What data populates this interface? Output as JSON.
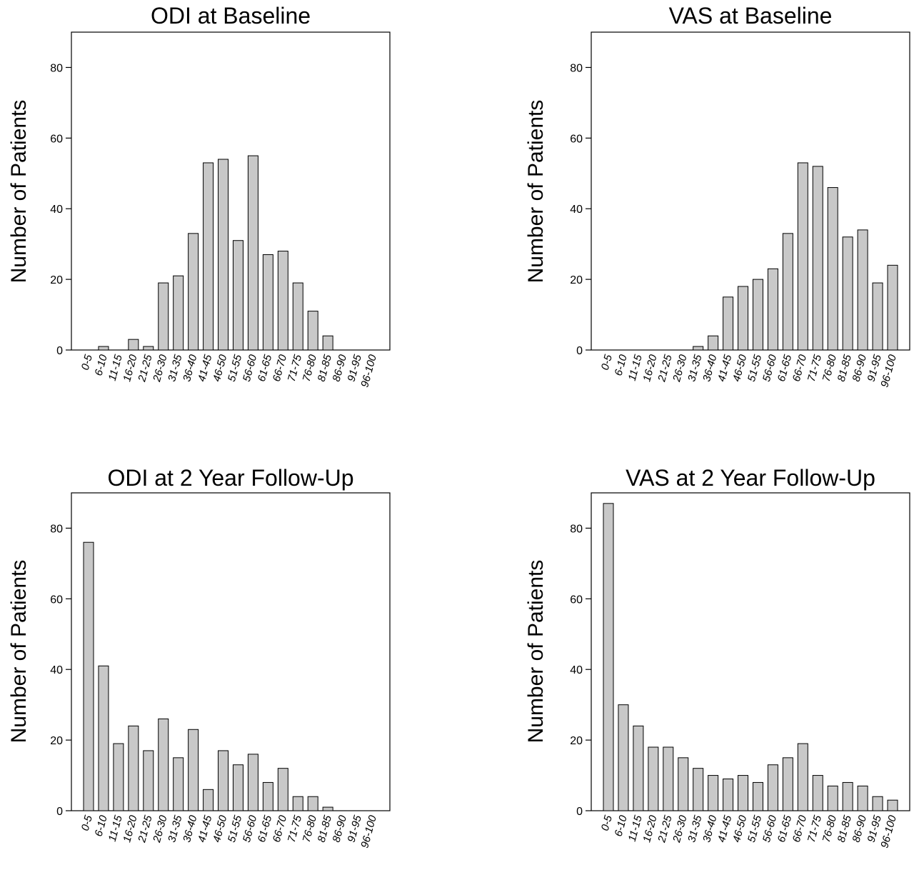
{
  "chart_data": [
    {
      "type": "bar",
      "title": "ODI at Baseline",
      "ylabel": "Number of Patients",
      "xlabel": "",
      "ylim": [
        0,
        90
      ],
      "yticks": [
        0,
        20,
        40,
        60,
        80
      ],
      "categories": [
        "0-5",
        "6-10",
        "11-15",
        "16-20",
        "21-25",
        "26-30",
        "31-35",
        "36-40",
        "41-45",
        "46-50",
        "51-55",
        "56-60",
        "61-65",
        "66-70",
        "71-75",
        "76-80",
        "81-85",
        "86-90",
        "91-95",
        "96-100"
      ],
      "values": [
        0,
        1,
        0,
        3,
        1,
        19,
        21,
        33,
        53,
        54,
        31,
        55,
        27,
        28,
        19,
        11,
        4,
        0,
        0,
        0
      ]
    },
    {
      "type": "bar",
      "title": "VAS at Baseline",
      "ylabel": "Number of Patients",
      "xlabel": "",
      "ylim": [
        0,
        90
      ],
      "yticks": [
        0,
        20,
        40,
        60,
        80
      ],
      "categories": [
        "0-5",
        "6-10",
        "11-15",
        "16-20",
        "21-25",
        "26-30",
        "31-35",
        "36-40",
        "41-45",
        "46-50",
        "51-55",
        "56-60",
        "61-65",
        "66-70",
        "71-75",
        "76-80",
        "81-85",
        "86-90",
        "91-95",
        "96-100"
      ],
      "values": [
        0,
        0,
        0,
        0,
        0,
        0,
        1,
        4,
        15,
        18,
        20,
        23,
        33,
        53,
        52,
        46,
        32,
        34,
        19,
        24
      ]
    },
    {
      "type": "bar",
      "title": "ODI at 2 Year Follow-Up",
      "ylabel": "Number of Patients",
      "xlabel": "",
      "ylim": [
        0,
        90
      ],
      "yticks": [
        0,
        20,
        40,
        60,
        80
      ],
      "categories": [
        "0-5",
        "6-10",
        "11-15",
        "16-20",
        "21-25",
        "26-30",
        "31-35",
        "36-40",
        "41-45",
        "46-50",
        "51-55",
        "56-60",
        "61-65",
        "66-70",
        "71-75",
        "76-80",
        "81-85",
        "86-90",
        "91-95",
        "96-100"
      ],
      "values": [
        76,
        41,
        19,
        24,
        17,
        26,
        15,
        23,
        6,
        17,
        13,
        16,
        8,
        12,
        4,
        4,
        1,
        0,
        0,
        0
      ]
    },
    {
      "type": "bar",
      "title": "VAS at 2 Year Follow-Up",
      "ylabel": "Number of Patients",
      "xlabel": "",
      "ylim": [
        0,
        90
      ],
      "yticks": [
        0,
        20,
        40,
        60,
        80
      ],
      "categories": [
        "0-5",
        "6-10",
        "11-15",
        "16-20",
        "21-25",
        "26-30",
        "31-35",
        "36-40",
        "41-45",
        "46-50",
        "51-55",
        "56-60",
        "61-65",
        "66-70",
        "71-75",
        "76-80",
        "81-85",
        "86-90",
        "91-95",
        "96-100"
      ],
      "values": [
        87,
        30,
        24,
        18,
        18,
        15,
        12,
        10,
        9,
        10,
        8,
        13,
        15,
        19,
        10,
        7,
        8,
        7,
        4,
        3
      ]
    }
  ]
}
